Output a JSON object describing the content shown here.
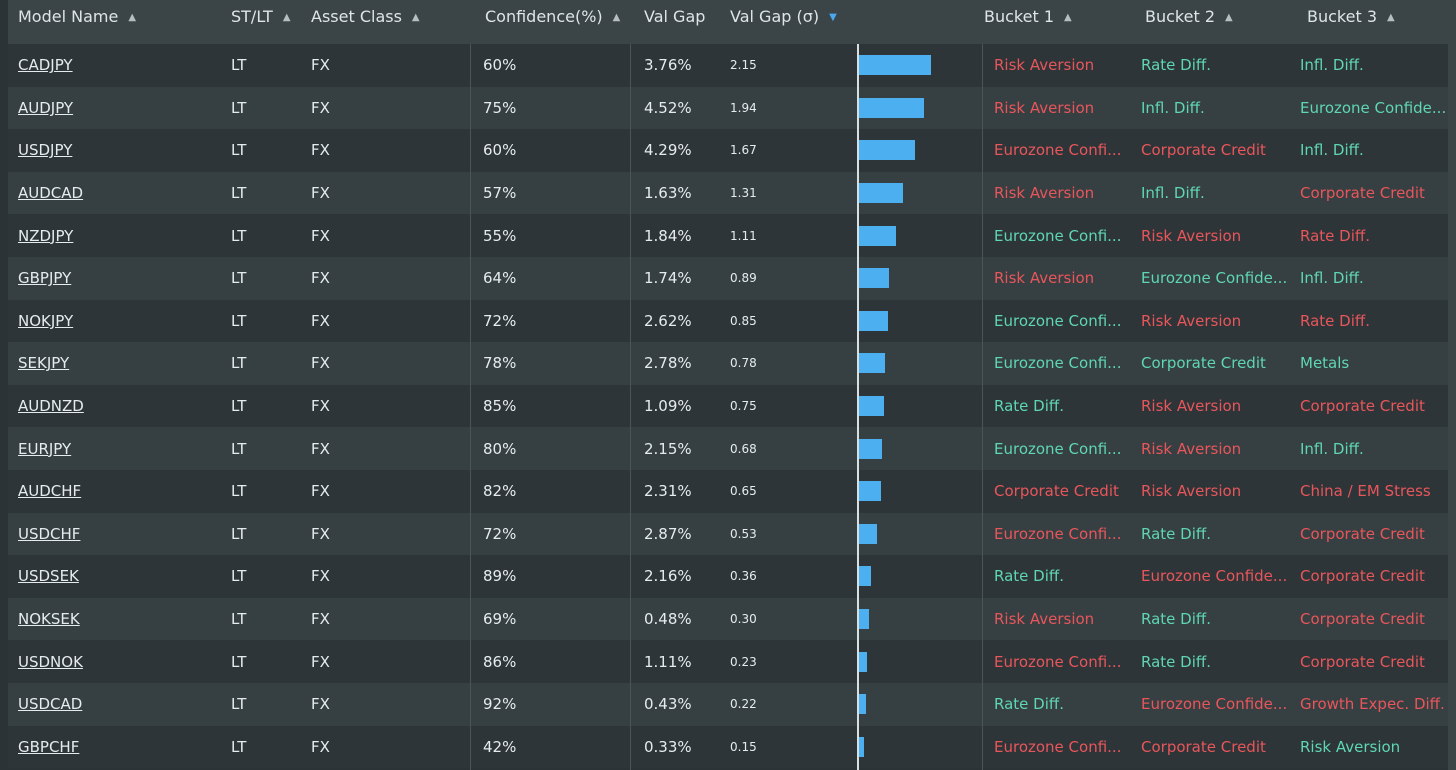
{
  "headers": {
    "model": "Model Name",
    "stlt": "ST/LT",
    "asset": "Asset Class",
    "confidence": "Confidence(%)",
    "valgap": "Val Gap",
    "valgap_sigma": "Val Gap (σ)",
    "bucket1": "Bucket 1",
    "bucket2": "Bucket 2",
    "bucket3": "Bucket 3"
  },
  "sort": {
    "column": "valgap_sigma",
    "direction": "desc"
  },
  "colors": {
    "bar": "#4cafef",
    "positive": "#5fd6b4",
    "negative": "#e8565b"
  },
  "rows": [
    {
      "model": "CADJPY",
      "stlt": "LT",
      "asset": "FX",
      "confidence": "60%",
      "valgap": "3.76%",
      "sigma": "2.15",
      "sigma_value": 2.15,
      "b1": "Risk Aversion",
      "b1_tone": "neg",
      "b2": "Rate Diff.",
      "b2_tone": "pos",
      "b3": "Infl. Diff.",
      "b3_tone": "pos"
    },
    {
      "model": "AUDJPY",
      "stlt": "LT",
      "asset": "FX",
      "confidence": "75%",
      "valgap": "4.52%",
      "sigma": "1.94",
      "sigma_value": 1.94,
      "b1": "Risk Aversion",
      "b1_tone": "neg",
      "b2": "Infl. Diff.",
      "b2_tone": "pos",
      "b3": "Eurozone Confide...",
      "b3_tone": "pos"
    },
    {
      "model": "USDJPY",
      "stlt": "LT",
      "asset": "FX",
      "confidence": "60%",
      "valgap": "4.29%",
      "sigma": "1.67",
      "sigma_value": 1.67,
      "b1": "Eurozone Confi...",
      "b1_tone": "neg",
      "b2": "Corporate Credit",
      "b2_tone": "neg",
      "b3": "Infl. Diff.",
      "b3_tone": "pos"
    },
    {
      "model": "AUDCAD",
      "stlt": "LT",
      "asset": "FX",
      "confidence": "57%",
      "valgap": "1.63%",
      "sigma": "1.31",
      "sigma_value": 1.31,
      "b1": "Risk Aversion",
      "b1_tone": "neg",
      "b2": "Infl. Diff.",
      "b2_tone": "pos",
      "b3": "Corporate Credit",
      "b3_tone": "neg"
    },
    {
      "model": "NZDJPY",
      "stlt": "LT",
      "asset": "FX",
      "confidence": "55%",
      "valgap": "1.84%",
      "sigma": "1.11",
      "sigma_value": 1.11,
      "b1": "Eurozone Confi...",
      "b1_tone": "pos",
      "b2": "Risk Aversion",
      "b2_tone": "neg",
      "b3": "Rate Diff.",
      "b3_tone": "neg"
    },
    {
      "model": "GBPJPY",
      "stlt": "LT",
      "asset": "FX",
      "confidence": "64%",
      "valgap": "1.74%",
      "sigma": "0.89",
      "sigma_value": 0.89,
      "b1": "Risk Aversion",
      "b1_tone": "neg",
      "b2": "Eurozone Confide...",
      "b2_tone": "pos",
      "b3": "Infl. Diff.",
      "b3_tone": "pos"
    },
    {
      "model": "NOKJPY",
      "stlt": "LT",
      "asset": "FX",
      "confidence": "72%",
      "valgap": "2.62%",
      "sigma": "0.85",
      "sigma_value": 0.85,
      "b1": "Eurozone Confi...",
      "b1_tone": "pos",
      "b2": "Risk Aversion",
      "b2_tone": "neg",
      "b3": "Rate Diff.",
      "b3_tone": "neg"
    },
    {
      "model": "SEKJPY",
      "stlt": "LT",
      "asset": "FX",
      "confidence": "78%",
      "valgap": "2.78%",
      "sigma": "0.78",
      "sigma_value": 0.78,
      "b1": "Eurozone Confi...",
      "b1_tone": "pos",
      "b2": "Corporate Credit",
      "b2_tone": "pos",
      "b3": "Metals",
      "b3_tone": "pos"
    },
    {
      "model": "AUDNZD",
      "stlt": "LT",
      "asset": "FX",
      "confidence": "85%",
      "valgap": "1.09%",
      "sigma": "0.75",
      "sigma_value": 0.75,
      "b1": "Rate Diff.",
      "b1_tone": "pos",
      "b2": "Risk Aversion",
      "b2_tone": "neg",
      "b3": "Corporate Credit",
      "b3_tone": "neg"
    },
    {
      "model": "EURJPY",
      "stlt": "LT",
      "asset": "FX",
      "confidence": "80%",
      "valgap": "2.15%",
      "sigma": "0.68",
      "sigma_value": 0.68,
      "b1": "Eurozone Confi...",
      "b1_tone": "pos",
      "b2": "Risk Aversion",
      "b2_tone": "neg",
      "b3": "Infl. Diff.",
      "b3_tone": "pos"
    },
    {
      "model": "AUDCHF",
      "stlt": "LT",
      "asset": "FX",
      "confidence": "82%",
      "valgap": "2.31%",
      "sigma": "0.65",
      "sigma_value": 0.65,
      "b1": "Corporate Credit",
      "b1_tone": "neg",
      "b2": "Risk Aversion",
      "b2_tone": "neg",
      "b3": "China / EM Stress",
      "b3_tone": "neg"
    },
    {
      "model": "USDCHF",
      "stlt": "LT",
      "asset": "FX",
      "confidence": "72%",
      "valgap": "2.87%",
      "sigma": "0.53",
      "sigma_value": 0.53,
      "b1": "Eurozone Confi...",
      "b1_tone": "neg",
      "b2": "Rate Diff.",
      "b2_tone": "pos",
      "b3": "Corporate Credit",
      "b3_tone": "neg"
    },
    {
      "model": "USDSEK",
      "stlt": "LT",
      "asset": "FX",
      "confidence": "89%",
      "valgap": "2.16%",
      "sigma": "0.36",
      "sigma_value": 0.36,
      "b1": "Rate Diff.",
      "b1_tone": "pos",
      "b2": "Eurozone Confide...",
      "b2_tone": "neg",
      "b3": "Corporate Credit",
      "b3_tone": "neg"
    },
    {
      "model": "NOKSEK",
      "stlt": "LT",
      "asset": "FX",
      "confidence": "69%",
      "valgap": "0.48%",
      "sigma": "0.30",
      "sigma_value": 0.3,
      "b1": "Risk Aversion",
      "b1_tone": "neg",
      "b2": "Rate Diff.",
      "b2_tone": "pos",
      "b3": "Corporate Credit",
      "b3_tone": "neg"
    },
    {
      "model": "USDNOK",
      "stlt": "LT",
      "asset": "FX",
      "confidence": "86%",
      "valgap": "1.11%",
      "sigma": "0.23",
      "sigma_value": 0.23,
      "b1": "Eurozone Confi...",
      "b1_tone": "neg",
      "b2": "Rate Diff.",
      "b2_tone": "pos",
      "b3": "Corporate Credit",
      "b3_tone": "neg"
    },
    {
      "model": "USDCAD",
      "stlt": "LT",
      "asset": "FX",
      "confidence": "92%",
      "valgap": "0.43%",
      "sigma": "0.22",
      "sigma_value": 0.22,
      "b1": "Rate Diff.",
      "b1_tone": "pos",
      "b2": "Eurozone Confide...",
      "b2_tone": "neg",
      "b3": "Growth Expec. Diff.",
      "b3_tone": "neg"
    },
    {
      "model": "GBPCHF",
      "stlt": "LT",
      "asset": "FX",
      "confidence": "42%",
      "valgap": "0.33%",
      "sigma": "0.15",
      "sigma_value": 0.15,
      "b1": "Eurozone Confi...",
      "b1_tone": "neg",
      "b2": "Corporate Credit",
      "b2_tone": "neg",
      "b3": "Risk Aversion",
      "b3_tone": "pos"
    }
  ]
}
